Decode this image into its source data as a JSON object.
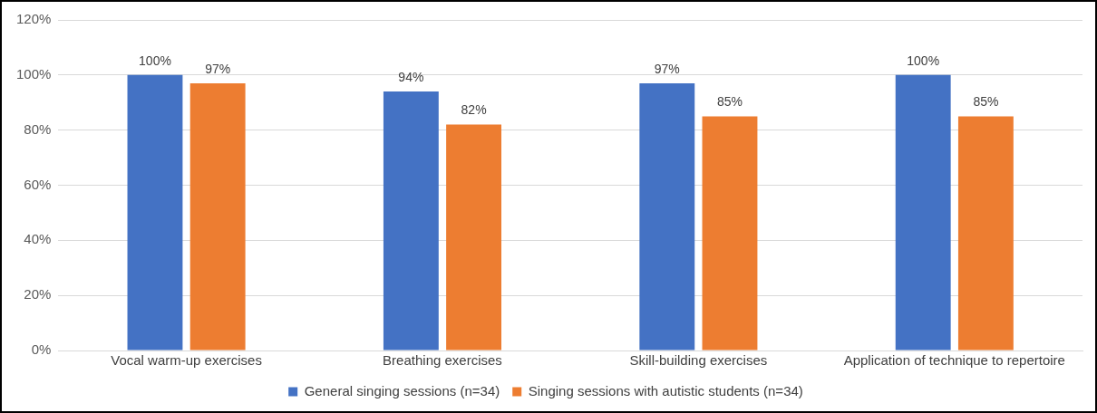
{
  "chart_data": {
    "type": "bar",
    "categories": [
      "Vocal warm-up exercises",
      "Breathing exercises",
      "Skill-building exercises",
      "Application of technique to repertoire"
    ],
    "series": [
      {
        "name": "General singing sessions (n=34)",
        "color": "#4472c4",
        "values": [
          100,
          94,
          97,
          100
        ],
        "value_labels": [
          "100%",
          "94%",
          "97%",
          "100%"
        ]
      },
      {
        "name": "Singing sessions with autistic students (n=34)",
        "color": "#ed7d31",
        "values": [
          97,
          82,
          85,
          85
        ],
        "value_labels": [
          "97%",
          "82%",
          "85%",
          "85%"
        ]
      }
    ],
    "ylim": [
      0,
      120
    ],
    "yticks": [
      {
        "value": 0,
        "label": "0%"
      },
      {
        "value": 20,
        "label": "20%"
      },
      {
        "value": 40,
        "label": "40%"
      },
      {
        "value": 60,
        "label": "60%"
      },
      {
        "value": 80,
        "label": "80%"
      },
      {
        "value": 100,
        "label": "100%"
      },
      {
        "value": 120,
        "label": "120%"
      }
    ],
    "grid": "y",
    "legend": "bottom"
  }
}
